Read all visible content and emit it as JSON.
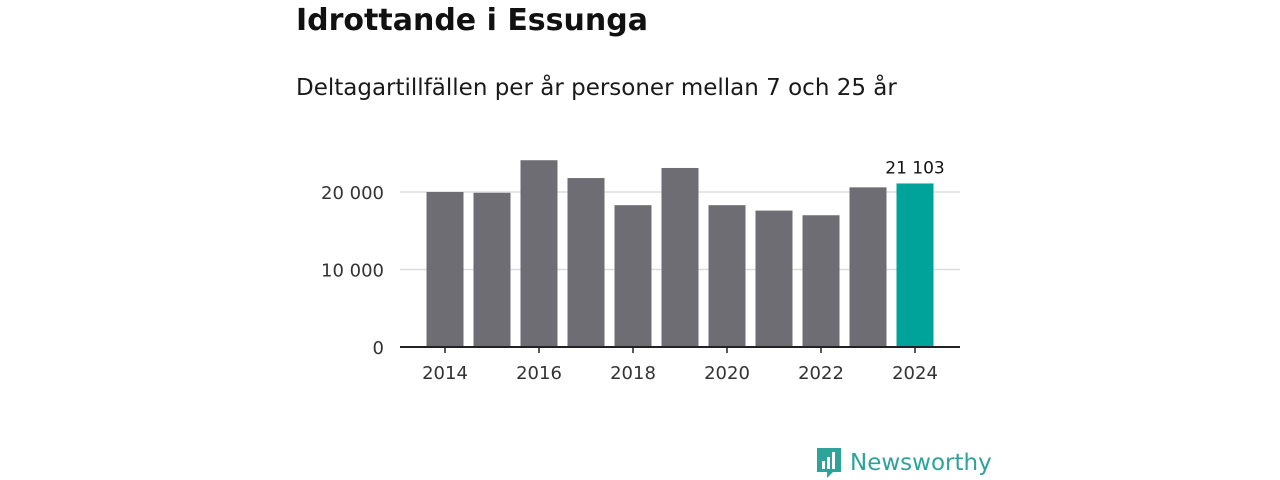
{
  "title": "Idrottande i Essunga",
  "subtitle": "Deltagartillfällen per år personer mellan 7 och 25 år",
  "brand": "Newsworthy",
  "colors": {
    "bar": "#6e6d73",
    "highlight": "#00a39a",
    "grid": "#dddddd",
    "axis": "#222222",
    "brand": "#2ea39a"
  },
  "chart_data": {
    "type": "bar",
    "title": "Idrottande i Essunga",
    "subtitle": "Deltagartillfällen per år personer mellan 7 och 25 år",
    "categories": [
      "2014",
      "2015",
      "2016",
      "2017",
      "2018",
      "2019",
      "2020",
      "2021",
      "2022",
      "2023",
      "2024"
    ],
    "values": [
      20000,
      19900,
      24100,
      21800,
      18300,
      23100,
      18300,
      17600,
      17000,
      20600,
      21103
    ],
    "xticks": [
      "2014",
      "2016",
      "2018",
      "2020",
      "2022",
      "2024"
    ],
    "yticks": [
      0,
      10000,
      20000
    ],
    "ytick_labels": [
      "0",
      "10 000",
      "20 000"
    ],
    "ylim": [
      0,
      25000
    ],
    "highlight_index": 10,
    "highlight_label": "21 103",
    "xlabel": "",
    "ylabel": "",
    "grid": true
  }
}
